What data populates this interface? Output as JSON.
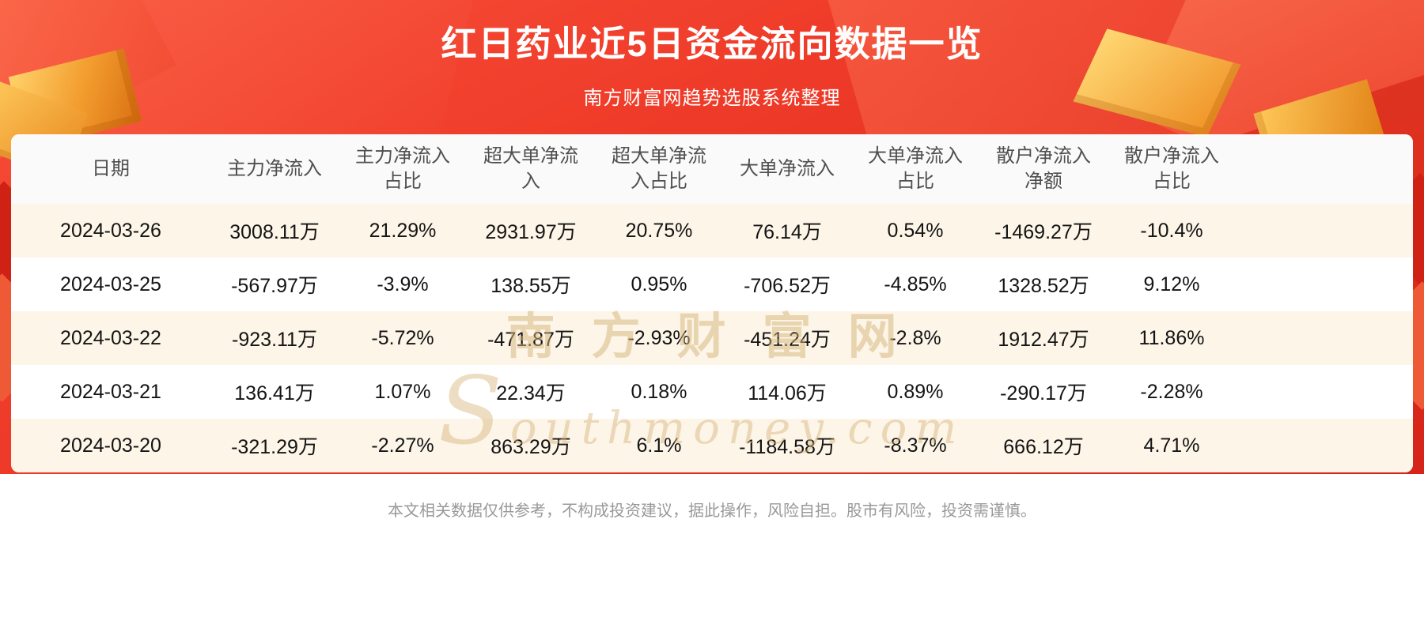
{
  "banner": {
    "title": "红日药业近5日资金流向数据一览",
    "subtitle": "南方财富网趋势选股系统整理"
  },
  "chart_data": {
    "type": "table",
    "title": "红日药业近5日资金流向数据一览",
    "subtitle": "南方财富网趋势选股系统整理",
    "columns": [
      "日期",
      "主力净流入",
      "主力净流入\n占比",
      "超大单净流\n入",
      "超大单净流\n入占比",
      "大单净流入",
      "大单净流入\n占比",
      "散户净流入\n净额",
      "散户净流入\n占比"
    ],
    "rows": [
      [
        "2024-03-26",
        "3008.11万",
        "21.29%",
        "2931.97万",
        "20.75%",
        "76.14万",
        "0.54%",
        "-1469.27万",
        "-10.4%"
      ],
      [
        "2024-03-25",
        "-567.97万",
        "-3.9%",
        "138.55万",
        "0.95%",
        "-706.52万",
        "-4.85%",
        "1328.52万",
        "9.12%"
      ],
      [
        "2024-03-22",
        "-923.11万",
        "-5.72%",
        "-471.87万",
        "-2.93%",
        "-451.24万",
        "-2.8%",
        "1912.47万",
        "11.86%"
      ],
      [
        "2024-03-21",
        "136.41万",
        "1.07%",
        "22.34万",
        "0.18%",
        "114.06万",
        "0.89%",
        "-290.17万",
        "-2.28%"
      ],
      [
        "2024-03-20",
        "-321.29万",
        "-2.27%",
        "863.29万",
        "6.1%",
        "-1184.58万",
        "-8.37%",
        "666.12万",
        "4.71%"
      ]
    ]
  },
  "watermark": {
    "cn": "南方财富网",
    "en": "Southmoney.com"
  },
  "footer": {
    "disclaimer": "本文相关数据仅供参考，不构成投资建议，据此操作，风险自担。股市有风险，投资需谨慎。"
  },
  "colors": {
    "banner_red": "#ee3a28",
    "stripe_cream": "#fcf5e8",
    "gold_accent": "#f29b2d",
    "header_text": "#4f4f4f",
    "cell_text": "#141414",
    "footer_text": "#999999",
    "watermark_gold": "#d6b478"
  }
}
